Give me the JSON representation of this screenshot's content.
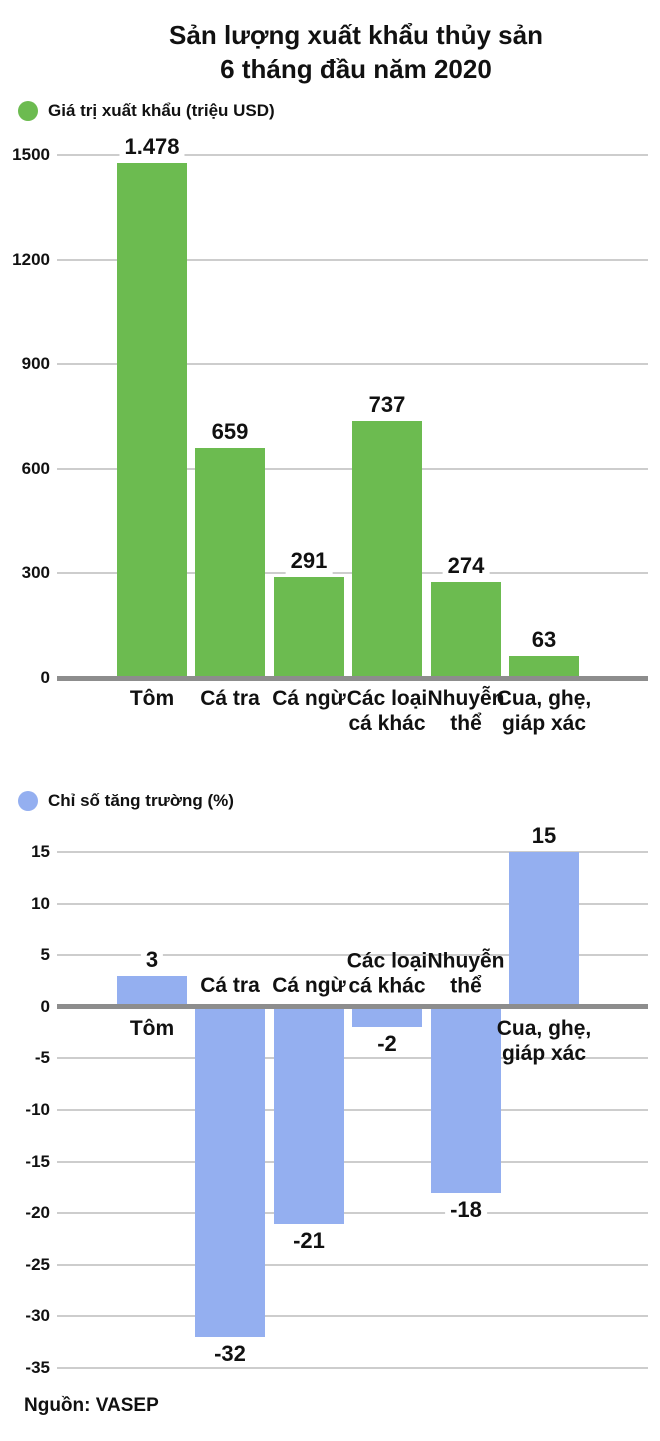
{
  "page": {
    "title_line1": "Sản lượng xuất khẩu thủy sản",
    "title_line2": "6 tháng đầu năm 2020",
    "source": "Nguồn: VASEP"
  },
  "colors": {
    "green_series": "#6cbb50",
    "blue_series": "#94aff0",
    "gridline": "#cdcdcd",
    "zero_axis": "#8d8d8d",
    "text": "#111111",
    "background": "#ffffff"
  },
  "chart_data": [
    {
      "type": "bar",
      "legend": "Giá trị xuất khẩu (triệu USD)",
      "color": "#6cbb50",
      "categories": [
        "Tôm",
        "Cá tra",
        "Cá ngừ",
        "Các loại\ncá khác",
        "Nhuyễn\nthể",
        "Cua, ghẹ,\ngiáp xác"
      ],
      "values": [
        1478,
        659,
        291,
        737,
        274,
        63
      ],
      "value_labels": [
        "1.478",
        "659",
        "291",
        "737",
        "274",
        "63"
      ],
      "ylim": [
        0,
        1500
      ],
      "yticks": [
        1500,
        1200,
        900,
        600,
        300,
        0
      ],
      "grid": true,
      "legend_position": "top-left"
    },
    {
      "type": "bar",
      "legend": "Chỉ số tăng trường (%)",
      "color": "#94aff0",
      "categories": [
        "Tôm",
        "Cá tra",
        "Cá ngừ",
        "Các loại\ncá khác",
        "Nhuyễn\nthể",
        "Cua, ghẹ,\ngiáp xác"
      ],
      "values": [
        3,
        -32,
        -21,
        -2,
        -18,
        15
      ],
      "value_labels": [
        "3",
        "-32",
        "-21",
        "-2",
        "-18",
        "15"
      ],
      "ylim": [
        -35,
        15
      ],
      "yticks": [
        15,
        10,
        5,
        0,
        -5,
        -10,
        -15,
        -20,
        -25,
        -30,
        -35
      ],
      "grid": true,
      "legend_position": "top-left"
    }
  ]
}
